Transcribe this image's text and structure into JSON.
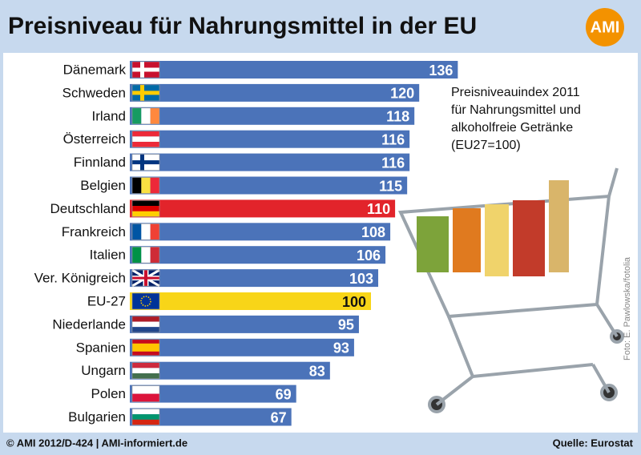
{
  "chart_data": {
    "type": "bar",
    "orientation": "horizontal",
    "title": "Preisniveau für Nahrungsmittel in der EU",
    "logo": "AMI",
    "annotation": [
      "Preisniveauindex 2011",
      "für Nahrungsmittel und",
      "alkoholfreie Getränke",
      "(EU27=100)"
    ],
    "credit": "Foto: E. Pawlowska/fotolia",
    "footer_left": "© AMI 2012/D-424 | AMI-informiert.de",
    "footer_right": "Quelle: Eurostat",
    "categories": [
      "Dänemark",
      "Schweden",
      "Irland",
      "Österreich",
      "Finnland",
      "Belgien",
      "Deutschland",
      "Frankreich",
      "Italien",
      "Ver. Königreich",
      "EU-27",
      "Niederlande",
      "Spanien",
      "Ungarn",
      "Polen",
      "Bulgarien"
    ],
    "values": [
      136,
      120,
      118,
      116,
      116,
      115,
      110,
      108,
      106,
      103,
      100,
      95,
      93,
      83,
      69,
      67
    ],
    "colors": [
      "#4b73b9",
      "#4b73b9",
      "#4b73b9",
      "#4b73b9",
      "#4b73b9",
      "#4b73b9",
      "#e2242b",
      "#4b73b9",
      "#4b73b9",
      "#4b73b9",
      "#f8d518",
      "#4b73b9",
      "#4b73b9",
      "#4b73b9",
      "#4b73b9",
      "#4b73b9"
    ]
  }
}
